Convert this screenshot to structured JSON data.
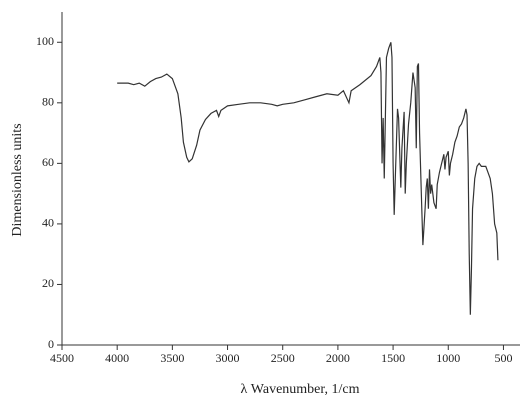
{
  "chart_data": {
    "type": "line",
    "x_label": "λ Wavenumber, 1/cm",
    "y_label": "Dimensionless units",
    "xlim": [
      4500,
      350
    ],
    "ylim": [
      0,
      110
    ],
    "xticks": [
      4500,
      4000,
      3500,
      3000,
      2500,
      2000,
      1500,
      1000,
      500
    ],
    "yticks": [
      0,
      20,
      40,
      60,
      80,
      100
    ],
    "series": [
      {
        "color": "#333333",
        "x": [
          4000,
          3900,
          3850,
          3800,
          3750,
          3700,
          3650,
          3600,
          3550,
          3500,
          3450,
          3420,
          3400,
          3370,
          3350,
          3320,
          3280,
          3250,
          3200,
          3150,
          3100,
          3080,
          3060,
          3000,
          2900,
          2800,
          2700,
          2600,
          2550,
          2500,
          2400,
          2300,
          2200,
          2100,
          2000,
          1950,
          1900,
          1880,
          1800,
          1700,
          1650,
          1620,
          1610,
          1600,
          1590,
          1580,
          1570,
          1560,
          1540,
          1520,
          1510,
          1500,
          1490,
          1480,
          1460,
          1450,
          1430,
          1420,
          1400,
          1390,
          1380,
          1360,
          1340,
          1320,
          1300,
          1290,
          1280,
          1270,
          1260,
          1240,
          1230,
          1210,
          1200,
          1190,
          1180,
          1170,
          1160,
          1150,
          1130,
          1110,
          1100,
          1080,
          1060,
          1040,
          1030,
          1020,
          1000,
          990,
          980,
          960,
          940,
          920,
          900,
          880,
          860,
          840,
          830,
          820,
          810,
          800,
          790,
          780,
          760,
          740,
          720,
          700,
          680,
          660,
          640,
          620,
          600,
          580,
          560,
          550
        ],
        "values": [
          86.5,
          86.5,
          86,
          86.5,
          85.5,
          87,
          88,
          88.5,
          89.5,
          88,
          83,
          75,
          67,
          62,
          60.5,
          61.5,
          66,
          71,
          74.5,
          76.5,
          77.5,
          75.5,
          77.5,
          79,
          79.5,
          80,
          80,
          79.5,
          79,
          79.5,
          80,
          81,
          82,
          83,
          82.5,
          84,
          80,
          84,
          86,
          89,
          92,
          95,
          90,
          60,
          75,
          55,
          75,
          95,
          98,
          100,
          95,
          60,
          43,
          55,
          78,
          75,
          52,
          65,
          77,
          50,
          60,
          73,
          80,
          90,
          85,
          65,
          92,
          93,
          70,
          45,
          33,
          45,
          52,
          55,
          45,
          58,
          50,
          53,
          47,
          45,
          53,
          57,
          60,
          63,
          58,
          62,
          64,
          56,
          60,
          63,
          67,
          69,
          72,
          73,
          75,
          78,
          76,
          60,
          30,
          10,
          25,
          45,
          55,
          59,
          60,
          59,
          59,
          59,
          57,
          55,
          50,
          40,
          37,
          28
        ]
      }
    ]
  }
}
